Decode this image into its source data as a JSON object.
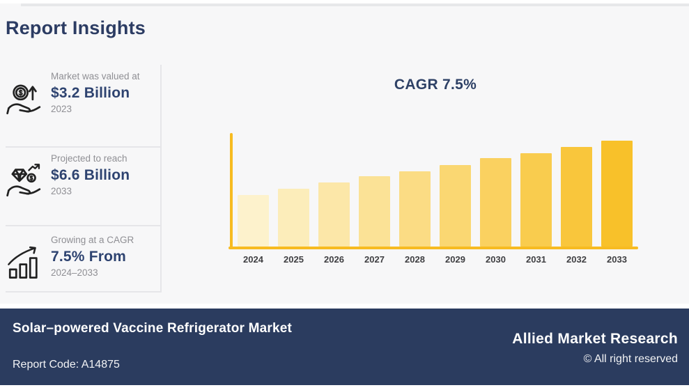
{
  "page": {
    "title": "Report Insights"
  },
  "insights": [
    {
      "icon": "hand-coin-arrow",
      "label": "Market was valued at",
      "value": "$3.2 Billion",
      "year": "2023"
    },
    {
      "icon": "hand-diamond-coin",
      "label": "Projected to reach",
      "value": "$6.6 Billion",
      "year": "2033"
    },
    {
      "icon": "growth-bars-arrow",
      "label": "Growing at a CAGR",
      "value": "7.5% From",
      "year": "2024–2033"
    }
  ],
  "chart_data": {
    "type": "bar",
    "title": "CAGR 7.5%",
    "categories": [
      "2024",
      "2025",
      "2026",
      "2027",
      "2028",
      "2029",
      "2030",
      "2031",
      "2032",
      "2033"
    ],
    "values": [
      3.2,
      3.6,
      4.0,
      4.4,
      4.7,
      5.1,
      5.5,
      5.8,
      6.2,
      6.6
    ],
    "ylim": [
      0,
      6.6
    ],
    "xlabel": "",
    "ylabel": "",
    "grid": false,
    "legend": false,
    "axis_color": "#f7bb21",
    "bar_colors": [
      "#FDF2CC",
      "#FCEDBA",
      "#FCE7A8",
      "#FBE296",
      "#FBDC84",
      "#FAD772",
      "#FAD160",
      "#F9CC4E",
      "#F9C63C",
      "#F8C12A"
    ]
  },
  "footer": {
    "report_title": "Solar–powered Vaccine Refrigerator Market",
    "report_code": "Report Code: A14875",
    "brand": "Allied Market Research",
    "copyright": "© All right reserved"
  },
  "colors": {
    "navy": "#2b3c5f",
    "value_navy": "#2e4370",
    "muted_gray": "#8f8f94",
    "canvas_bg": "#f7f7f8",
    "axis_gold": "#f7bb21"
  }
}
